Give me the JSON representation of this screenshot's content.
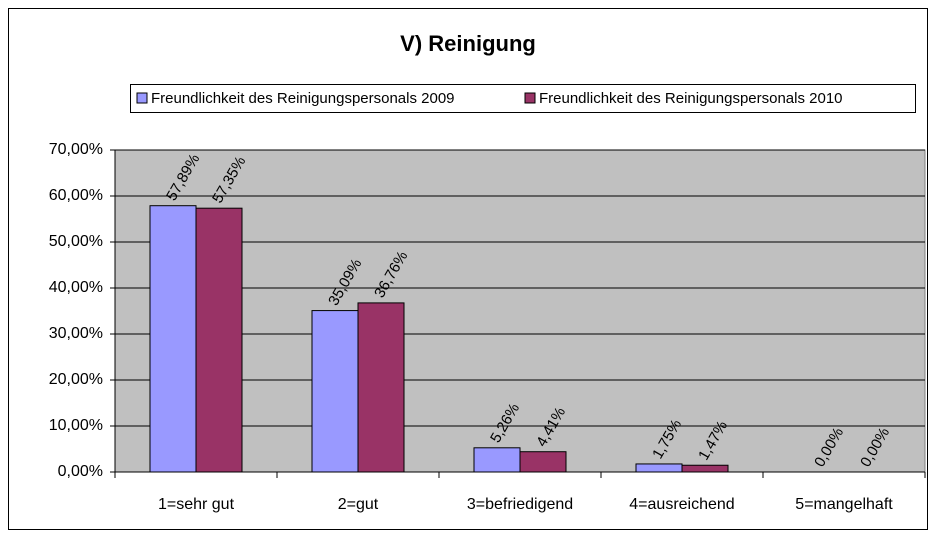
{
  "chart_data": {
    "type": "bar",
    "title": "V) Reinigung",
    "categories": [
      "1=sehr gut",
      "2=gut",
      "3=befriedigend",
      "4=ausreichend",
      "5=mangelhaft"
    ],
    "series": [
      {
        "name": "Freundlichkeit des Reinigungspersonals 2009",
        "color": "#9999ff",
        "values": [
          57.89,
          35.09,
          5.26,
          1.75,
          0
        ],
        "value_labels": [
          "57,89%",
          "35,09%",
          "5,26%",
          "1,75%",
          "0,00%"
        ]
      },
      {
        "name": "Freundlichkeit des Reinigungspersonals 2010",
        "color": "#993366",
        "values": [
          57.35,
          36.76,
          4.41,
          1.47,
          0
        ],
        "value_labels": [
          "57,35%",
          "36,76%",
          "4,41%",
          "1,47%",
          "0,00%"
        ]
      }
    ],
    "ylim": [
      0,
      70
    ],
    "yticks": [
      {
        "value": 0,
        "label": "0,00%"
      },
      {
        "value": 10,
        "label": "10,00%"
      },
      {
        "value": 20,
        "label": "20,00%"
      },
      {
        "value": 30,
        "label": "30,00%"
      },
      {
        "value": 40,
        "label": "40,00%"
      },
      {
        "value": 50,
        "label": "50,00%"
      },
      {
        "value": 60,
        "label": "60,00%"
      },
      {
        "value": 70,
        "label": "70,00%"
      }
    ],
    "grid": true,
    "plot_background": "#c0c0c0",
    "legend": "top"
  }
}
